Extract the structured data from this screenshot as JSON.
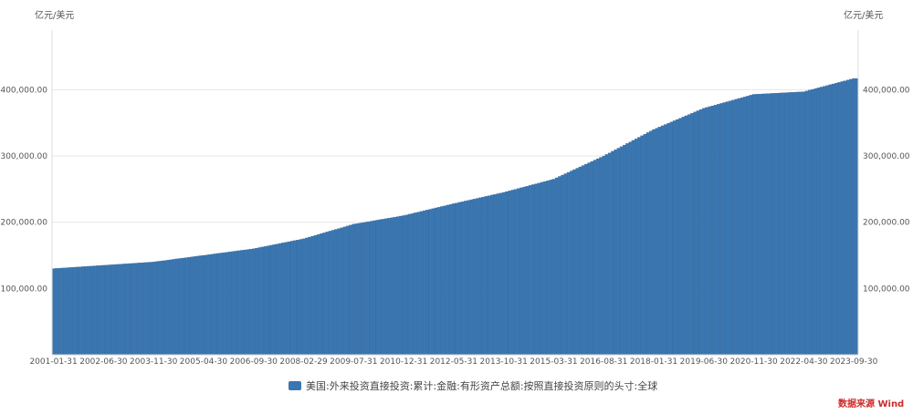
{
  "chart_data": {
    "type": "bar",
    "title": "",
    "unit_left": "亿元/美元",
    "unit_right": "亿元/美元",
    "ylim": [
      0,
      490000
    ],
    "yticks": [
      100000,
      200000,
      300000,
      400000
    ],
    "ytick_labels_left": [
      "100,000.00",
      "200,000.00",
      "300,000.00",
      "400,000.00"
    ],
    "ytick_labels_right": [
      "100,000.00",
      "200,000.00",
      "300,000.00",
      "400,000.00"
    ],
    "xtick_labels": [
      "2001-01-31",
      "2002-06-30",
      "2003-11-30",
      "2005-04-30",
      "2006-09-30",
      "2008-02-29",
      "2009-07-31",
      "2010-12-31",
      "2012-05-31",
      "2013-10-31",
      "2015-03-31",
      "2016-08-31",
      "2018-01-31",
      "2019-06-30",
      "2020-11-30",
      "2022-04-30",
      "2023-09-30"
    ],
    "x_start": "2001-01",
    "x_end": "2023-10",
    "frequency": "monthly",
    "grid": true,
    "legend_position": "bottom",
    "series": [
      {
        "name": "美国:外来投资直接投资:累计:金融:有形资产总额:按照直接投资原则的头寸:全球",
        "color": "#3a76b0",
        "anchors": [
          [
            "2001-01",
            130000
          ],
          [
            "2002-06",
            135000
          ],
          [
            "2003-11",
            140000
          ],
          [
            "2005-04",
            150000
          ],
          [
            "2006-09",
            160000
          ],
          [
            "2008-02",
            175000
          ],
          [
            "2009-07",
            197000
          ],
          [
            "2010-12",
            210000
          ],
          [
            "2012-05",
            228000
          ],
          [
            "2013-10",
            245000
          ],
          [
            "2015-03",
            265000
          ],
          [
            "2016-08",
            300000
          ],
          [
            "2018-01",
            340000
          ],
          [
            "2019-06",
            372000
          ],
          [
            "2020-11",
            393000
          ],
          [
            "2022-04",
            397000
          ],
          [
            "2023-09",
            417000
          ],
          [
            "2023-10",
            417000
          ]
        ]
      }
    ]
  },
  "watermark": "数据来源 Wind"
}
